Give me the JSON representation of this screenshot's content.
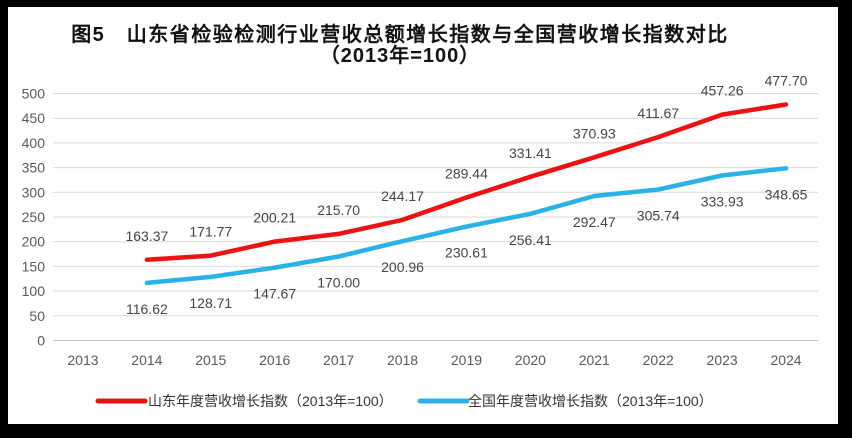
{
  "figure": {
    "title_line1": "图5　山东省检验检测行业营收总额增长指数与全国营收增长指数对比",
    "title_line2": "（2013年=100）"
  },
  "legend": {
    "shandong_label": "山东年度营收增长指数（2013年=100）",
    "national_label": "全国年度营收增长指数（2013年=100）"
  },
  "colors": {
    "shandong_line": "#ee1111",
    "national_line": "#29b2e5",
    "gridline": "#d9d9d9",
    "zero_line": "#bfbfbf",
    "tick_text": "#595959",
    "data_label_text": "#444444",
    "frame": "#000000",
    "background": "#ffffff"
  },
  "chart_data": {
    "type": "line",
    "title": "图5　山东省检验检测行业营收总额增长指数与全国营收增长指数对比",
    "subtitle": "（2013年=100）",
    "x_categories": [
      "2013",
      "2014",
      "2015",
      "2016",
      "2017",
      "2018",
      "2019",
      "2020",
      "2021",
      "2022",
      "2023",
      "2024"
    ],
    "series": [
      {
        "name": "山东年度营收增长指数（2013年=100）",
        "color": "#ee1111",
        "start_category": "2014",
        "values": [
          163.37,
          171.77,
          200.21,
          215.7,
          244.17,
          289.44,
          331.41,
          370.93,
          411.67,
          457.26,
          477.7
        ],
        "label_position": "above"
      },
      {
        "name": "全国年度营收增长指数（2013年=100）",
        "color": "#29b2e5",
        "start_category": "2014",
        "values": [
          116.62,
          128.71,
          147.67,
          170.0,
          200.96,
          230.61,
          256.41,
          292.47,
          305.74,
          333.93,
          348.65
        ],
        "label_position": "below"
      }
    ],
    "ylim": [
      0,
      500
    ],
    "ytick_step": 50,
    "grid": "horizontal",
    "data_labels": true,
    "legend_position": "bottom",
    "base_note": "2013 base year = 100 (not plotted; lines start at 2014)"
  }
}
